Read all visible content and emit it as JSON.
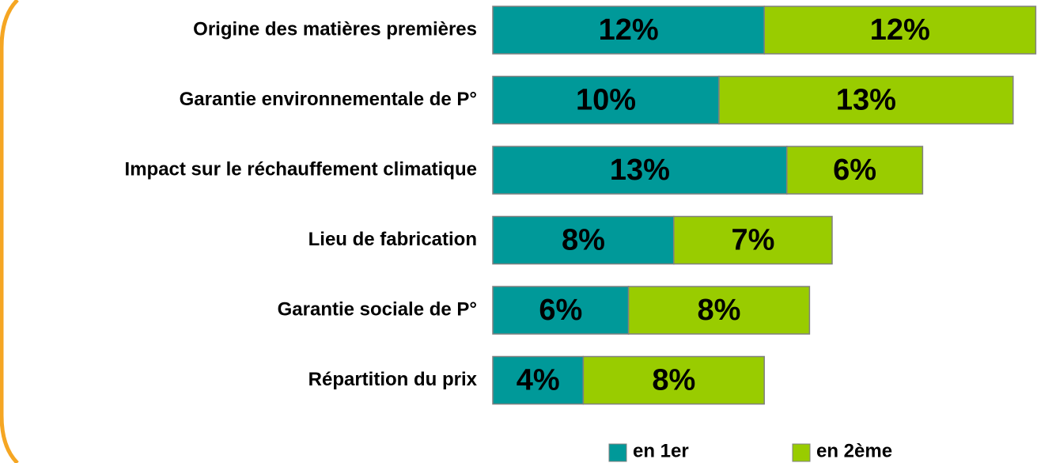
{
  "chart_data": {
    "type": "bar",
    "orientation": "horizontal",
    "stacked": true,
    "categories": [
      "Origine des matières premières",
      "Garantie environnementale de P°",
      "Impact sur le réchauffement climatique",
      "Lieu de fabrication",
      "Garantie sociale de P°",
      "Répartition du prix"
    ],
    "series": [
      {
        "name": "en 1er",
        "color": "#009999",
        "values": [
          12,
          10,
          13,
          8,
          6,
          4
        ],
        "value_labels": [
          "12%",
          "10%",
          "13%",
          "8%",
          "6%",
          "4%"
        ]
      },
      {
        "name": "en 2ème",
        "color": "#99cc00",
        "values": [
          12,
          13,
          6,
          7,
          8,
          8
        ],
        "value_labels": [
          "12%",
          "13%",
          "6%",
          "7%",
          "8%",
          "8%"
        ]
      }
    ],
    "legend": "bottom"
  }
}
